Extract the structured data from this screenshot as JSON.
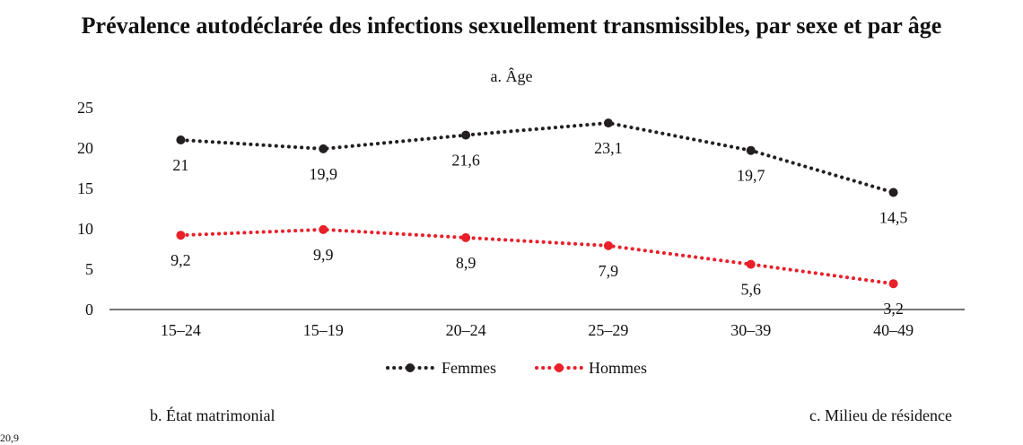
{
  "title": "Prévalence autodéclarée des infections sexuellement transmissibles, par sexe et par âge",
  "panels": {
    "b": "b. État matrimonial",
    "c": "c. Milieu de résidence"
  },
  "cut_off_text": "20,9",
  "chart_data": {
    "type": "line",
    "title": "a. Âge",
    "xlabel": "",
    "ylabel": "",
    "categories": [
      "15–24",
      "15–19",
      "20–24",
      "25–29",
      "30–39",
      "40–49"
    ],
    "ylim": [
      0,
      25
    ],
    "yticks": [
      0,
      5,
      10,
      15,
      20,
      25
    ],
    "grid": false,
    "legend_position": "bottom-center",
    "series": [
      {
        "name": "Femmes",
        "color": "#231f20",
        "style": "dotted",
        "marker": "circle",
        "values": [
          21,
          19.9,
          21.6,
          23.1,
          19.7,
          14.5
        ],
        "labels": [
          "21",
          "19,9",
          "21,6",
          "23,1",
          "19,7",
          "14,5"
        ]
      },
      {
        "name": "Hommes",
        "color": "#e8202a",
        "style": "dotted",
        "marker": "circle",
        "values": [
          9.2,
          9.9,
          8.9,
          7.9,
          5.6,
          3.2
        ],
        "labels": [
          "9,2",
          "9,9",
          "8,9",
          "7,9",
          "5,6",
          "3,2"
        ]
      }
    ]
  }
}
